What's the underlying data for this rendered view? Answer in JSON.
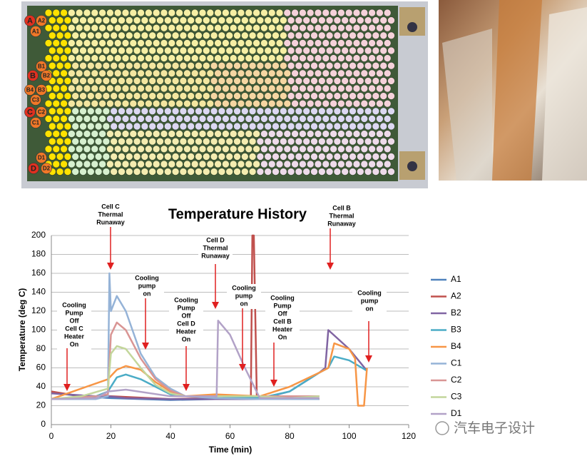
{
  "module": {
    "labels": [
      "A",
      "A2",
      "A1",
      "B1",
      "B",
      "B2",
      "B4",
      "B3",
      "C3",
      "C",
      "C2",
      "C1",
      "D1",
      "D",
      "D2"
    ]
  },
  "watermark": "汽车电子设计",
  "chart_data": {
    "type": "line",
    "title": "Temperature History",
    "xlabel": "Time (min)",
    "ylabel": "Temperature (deg C)",
    "xlim": [
      0,
      120
    ],
    "xticks": [
      0,
      20,
      40,
      60,
      80,
      100,
      120
    ],
    "ylim": [
      0,
      200
    ],
    "yticks": [
      0,
      20,
      40,
      60,
      80,
      100,
      120,
      140,
      160,
      180,
      200
    ],
    "grid": true,
    "series": [
      {
        "name": "A1",
        "color": "#4f81bd",
        "x": [
          0,
          5,
          10,
          20,
          40,
          55,
          70,
          90
        ],
        "values": [
          35,
          32,
          30,
          28,
          26,
          27,
          27,
          27
        ]
      },
      {
        "name": "A2",
        "color": "#c0504d",
        "x": [
          0,
          10,
          20,
          40,
          55,
          67,
          67.5,
          68,
          69,
          70,
          90
        ],
        "values": [
          35,
          30,
          30,
          27,
          28,
          27,
          200,
          200,
          27,
          27,
          27
        ]
      },
      {
        "name": "B2",
        "color": "#8064a2",
        "x": [
          0,
          15,
          19,
          25,
          40,
          55,
          70,
          80,
          90,
          92,
          93,
          100,
          106
        ],
        "values": [
          33,
          30,
          30,
          28,
          27,
          27,
          27,
          35,
          55,
          60,
          100,
          80,
          57
        ]
      },
      {
        "name": "B3",
        "color": "#4bacc6",
        "x": [
          0,
          15,
          19,
          22,
          25,
          30,
          35,
          40,
          45,
          55,
          70,
          80,
          90,
          93,
          95,
          100,
          106
        ],
        "values": [
          27,
          30,
          35,
          50,
          53,
          48,
          40,
          32,
          30,
          30,
          28,
          35,
          55,
          60,
          72,
          68,
          57
        ]
      },
      {
        "name": "B4",
        "color": "#f79646",
        "x": [
          0,
          19,
          22,
          25,
          30,
          35,
          40,
          45,
          55,
          70,
          80,
          90,
          93,
          95,
          100,
          102,
          103,
          105,
          106
        ],
        "values": [
          27,
          48,
          58,
          62,
          58,
          45,
          35,
          30,
          32,
          30,
          40,
          55,
          60,
          86,
          80,
          70,
          20,
          20,
          60
        ]
      },
      {
        "name": "C1",
        "color": "#95b3d7",
        "x": [
          0,
          15,
          19,
          19.5,
          20,
          22,
          25,
          30,
          35,
          40,
          45,
          55,
          70,
          90
        ],
        "values": [
          27,
          27,
          30,
          160,
          120,
          136,
          120,
          75,
          50,
          38,
          30,
          28,
          27,
          27
        ]
      },
      {
        "name": "C2",
        "color": "#d99594",
        "x": [
          0,
          15,
          19,
          20,
          22,
          25,
          30,
          35,
          40,
          45,
          55,
          70,
          90
        ],
        "values": [
          27,
          30,
          32,
          95,
          108,
          100,
          70,
          48,
          36,
          30,
          30,
          30,
          30
        ]
      },
      {
        "name": "C3",
        "color": "#c3d69b",
        "x": [
          0,
          10,
          19,
          20,
          22,
          25,
          30,
          35,
          40,
          45,
          55,
          70,
          80,
          90
        ],
        "values": [
          27,
          30,
          38,
          75,
          83,
          80,
          60,
          42,
          33,
          30,
          30,
          30,
          28,
          30
        ]
      },
      {
        "name": "D1",
        "color": "#b2a2c7",
        "x": [
          0,
          15,
          19,
          25,
          40,
          55,
          55.5,
          56,
          60,
          65,
          70,
          90
        ],
        "values": [
          27,
          28,
          35,
          37,
          30,
          30,
          30,
          110,
          95,
          60,
          28,
          28
        ]
      }
    ],
    "annotations": [
      {
        "lines": [
          "Cooling",
          "Pump",
          "Off",
          "Cell C",
          "Heater",
          "On"
        ]
      },
      {
        "lines": [
          "Cell C",
          "Thermal",
          "Runaway"
        ]
      },
      {
        "lines": [
          "Cooling",
          "pump",
          "on"
        ]
      },
      {
        "lines": [
          "Cooling",
          "Pump",
          "Off",
          "Cell D",
          "Heater",
          "On"
        ]
      },
      {
        "lines": [
          "Cell D",
          "Thermal",
          "Runaway"
        ]
      },
      {
        "lines": [
          "Cooling",
          "pump",
          "on"
        ]
      },
      {
        "lines": [
          "Cooling",
          "Pump",
          "Off",
          "Cell B",
          "Heater",
          "On"
        ]
      },
      {
        "lines": [
          "Cell B",
          "Thermal",
          "Runaway"
        ]
      },
      {
        "lines": [
          "Cooling",
          "pump",
          "on"
        ]
      }
    ]
  }
}
